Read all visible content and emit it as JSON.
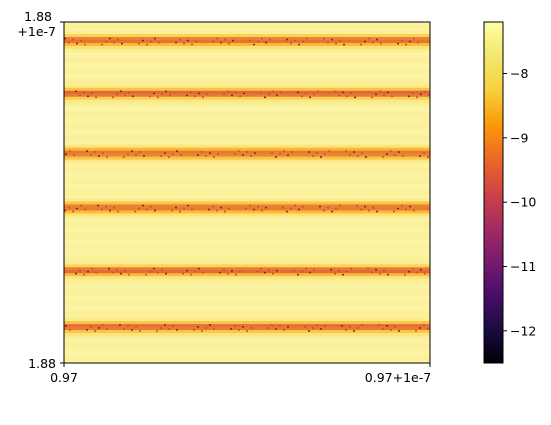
{
  "chart_data": [
    {
      "type": "heatmap",
      "title": "",
      "xlabel": "",
      "ylabel": "",
      "x_ticks": [
        "0.97",
        "0.97+1e-7"
      ],
      "y_ticks": [
        "1.88\n+1e-7",
        "1.88"
      ],
      "colormap": "inferno",
      "pattern": "horizontal banding: mostly bright yellow (about -7.5 to -8.2) with six darker orange/red stripes",
      "band_rows_fraction_from_top": [
        0.055,
        0.21,
        0.385,
        0.545,
        0.73,
        0.895
      ],
      "grid": false
    },
    {
      "type": "colorbar",
      "colormap": "inferno",
      "range": [
        -12.5,
        -7.2
      ],
      "ticks": [
        -8,
        -9,
        -10,
        -11,
        -12
      ],
      "tick_labels": [
        "−8",
        "−9",
        "−10",
        "−11",
        "−12"
      ]
    }
  ],
  "colors": {
    "yellow": "#fcf4a6",
    "orange": "#f98c0a",
    "red": "#d44842"
  }
}
